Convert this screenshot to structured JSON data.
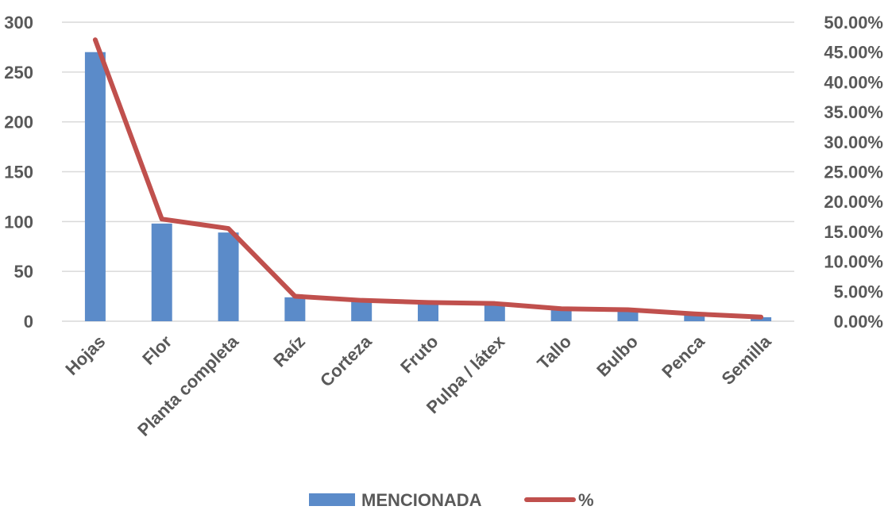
{
  "chart_data": {
    "type": "bar",
    "categories": [
      "Hojas",
      "Flor",
      "Planta completa",
      "Raíz",
      "Corteza",
      "Fruto",
      "Pulpa / látex",
      "Tallo",
      "Bulbo",
      "Penca",
      "Semilla"
    ],
    "series": [
      {
        "name": "MENCIONADA",
        "type": "bar",
        "axis": "left",
        "color": "#5B8BC9",
        "values": [
          270,
          98,
          89,
          24,
          20,
          18,
          17,
          12,
          11,
          7,
          4
        ]
      },
      {
        "name": "%",
        "type": "line",
        "axis": "right",
        "color": "#C0504D",
        "values": [
          0.4706,
          0.1708,
          0.1551,
          0.0418,
          0.0349,
          0.0314,
          0.0296,
          0.0209,
          0.0192,
          0.0122,
          0.007
        ]
      }
    ],
    "ylim_left": [
      0,
      300
    ],
    "yticks_left": [
      "0",
      "50",
      "100",
      "150",
      "200",
      "250",
      "300"
    ],
    "ylim_right": [
      0,
      0.5
    ],
    "yticks_right": [
      "0.00%",
      "5.00%",
      "10.00%",
      "15.00%",
      "20.00%",
      "25.00%",
      "30.00%",
      "35.00%",
      "40.00%",
      "45.00%",
      "50.00%"
    ],
    "grid": true,
    "legend": "bottom",
    "title": "",
    "xlabel": "",
    "ylabel": ""
  }
}
